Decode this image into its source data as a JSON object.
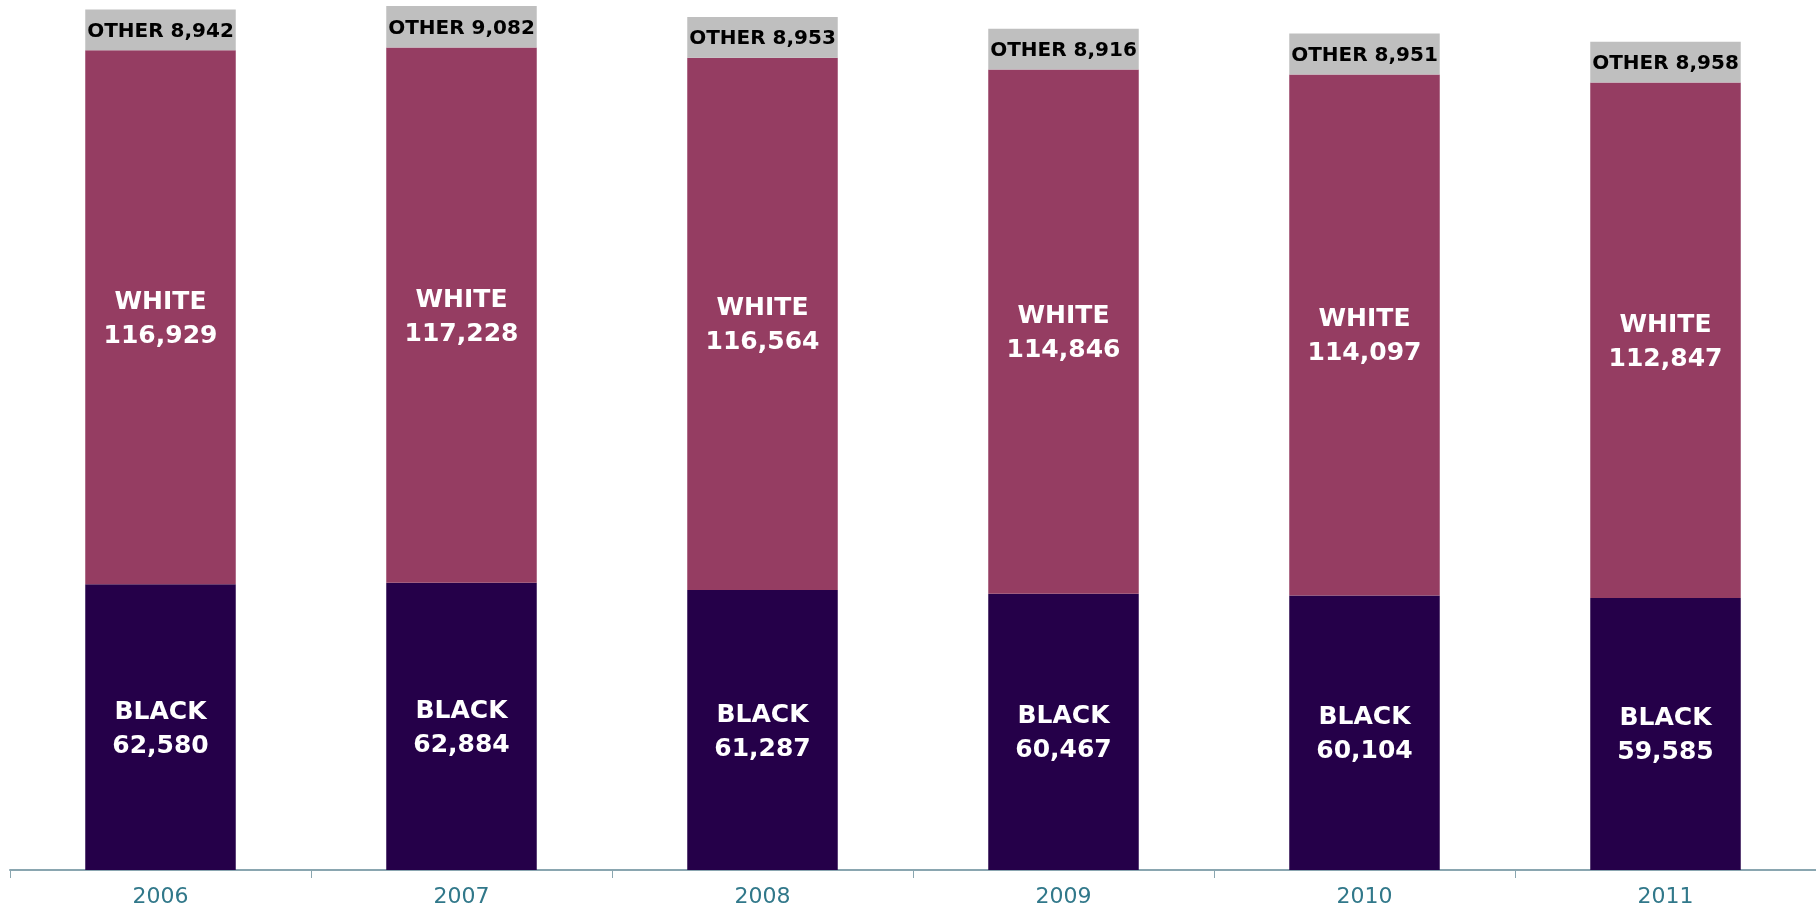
{
  "chart_data": {
    "type": "bar",
    "stacked": true,
    "categories": [
      "2006",
      "2007",
      "2008",
      "2009",
      "2010",
      "2011"
    ],
    "series": [
      {
        "name": "BLACK",
        "color": "#250049",
        "values": [
          62580,
          62884,
          61287,
          60467,
          60104,
          59585
        ],
        "value_labels": [
          "62,580",
          "62,884",
          "61,287",
          "60,467",
          "60,104",
          "59,585"
        ]
      },
      {
        "name": "WHITE",
        "color": "#953d62",
        "values": [
          116929,
          117228,
          116564,
          114846,
          114097,
          112847
        ],
        "value_labels": [
          "116,929",
          "117,228",
          "116,564",
          "114,846",
          "114,097",
          "112,847"
        ]
      },
      {
        "name": "OTHER",
        "color": "#bfbfbf",
        "values": [
          8942,
          9082,
          8953,
          8916,
          8951,
          8958
        ],
        "value_labels": [
          "8,942",
          "9,082",
          "8,953",
          "8,916",
          "8,951",
          "8,958"
        ]
      }
    ],
    "legend": false,
    "grid": false
  }
}
